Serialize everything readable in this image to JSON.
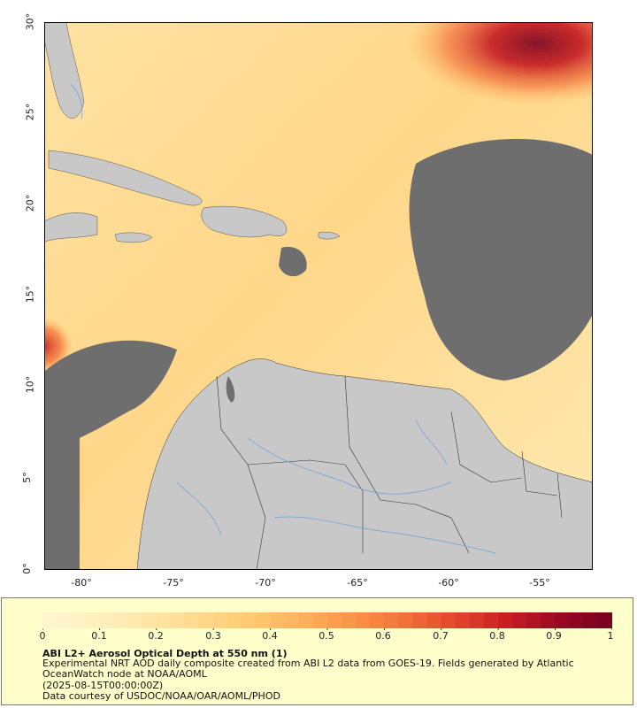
{
  "map": {
    "lat_labels": [
      "30°",
      "25°",
      "20°",
      "15°",
      "10°",
      "5°",
      "0°"
    ],
    "lon_labels": [
      "-80°",
      "-75°",
      "-70°",
      "-65°",
      "-60°",
      "-55°"
    ],
    "lat_range": [
      0,
      30
    ],
    "lon_range": [
      -82,
      -52
    ],
    "colors": {
      "land": "#c8c8c8",
      "no_data": "#6e6e6e",
      "rivers": "#6e9fd8",
      "borders": "#333333",
      "low_aod": "#fff2bf",
      "high_aod": "#7a0020"
    }
  },
  "legend": {
    "tick_labels": [
      "0",
      "0.1",
      "0.2",
      "0.3",
      "0.4",
      "0.5",
      "0.6",
      "0.7",
      "0.8",
      "0.9",
      "1"
    ],
    "title": "ABI L2+ Aerosol Optical Depth at 550 nm (1)",
    "description": "Experimental NRT AOD daily composite created from ABI L2 data from GOES-19. Fields generated by Atlantic OceanWatch node at NOAA/AOML",
    "date": "(2025-08-15T00:00:00Z)",
    "credit": "Data courtesy of USDOC/NOAA/OAR/AOML/PHOD",
    "colorscale": [
      "#fff6d0",
      "#ffefbd",
      "#ffe6a6",
      "#ffd98c",
      "#ffc870",
      "#fdb25a",
      "#fa9448",
      "#f3723a",
      "#e5472d",
      "#cc1f22",
      "#9e0a22",
      "#7a0020"
    ]
  }
}
